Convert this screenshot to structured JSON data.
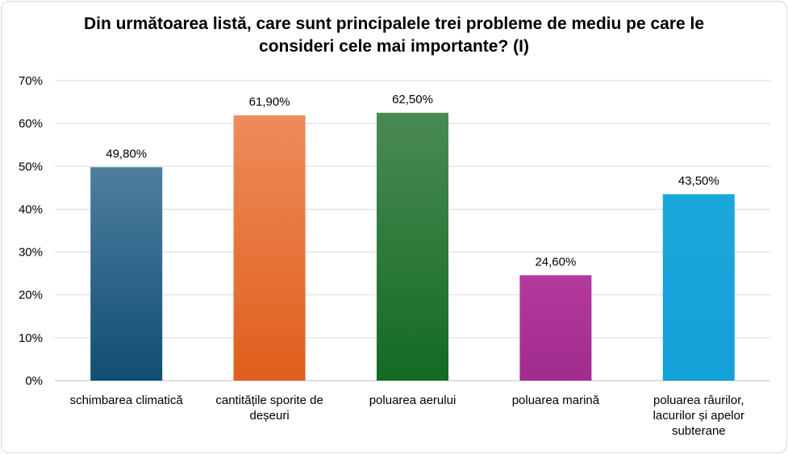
{
  "chart_data": {
    "type": "bar",
    "title": "Din următoarea listă, care sunt principalele trei probleme de mediu pe care le consideri cele mai importante? (I)",
    "categories": [
      [
        "schimbarea climatică"
      ],
      [
        "cantitățile sporite de",
        "deșeuri"
      ],
      [
        "poluarea aerului"
      ],
      [
        "poluarea marină"
      ],
      [
        "poluarea râurilor,",
        "lacurilor și apelor",
        "subterane"
      ]
    ],
    "values": [
      49.8,
      61.9,
      62.5,
      24.6,
      43.5
    ],
    "value_labels": [
      "49,80%",
      "61,90%",
      "62,50%",
      "24,60%",
      "43,50%"
    ],
    "y_ticks": [
      "0%",
      "10%",
      "20%",
      "30%",
      "40%",
      "50%",
      "60%",
      "70%"
    ],
    "ylim": [
      0,
      70
    ],
    "grid": true,
    "colors": [
      [
        "#4e7ea0",
        "#0f4e72"
      ],
      [
        "#ee8c5a",
        "#e05e1c"
      ],
      [
        "#4a8a54",
        "#136b22"
      ],
      [
        "#b43a9c",
        "#a12b8e"
      ],
      [
        "#1aa8dc",
        "#14a0d8"
      ]
    ]
  }
}
